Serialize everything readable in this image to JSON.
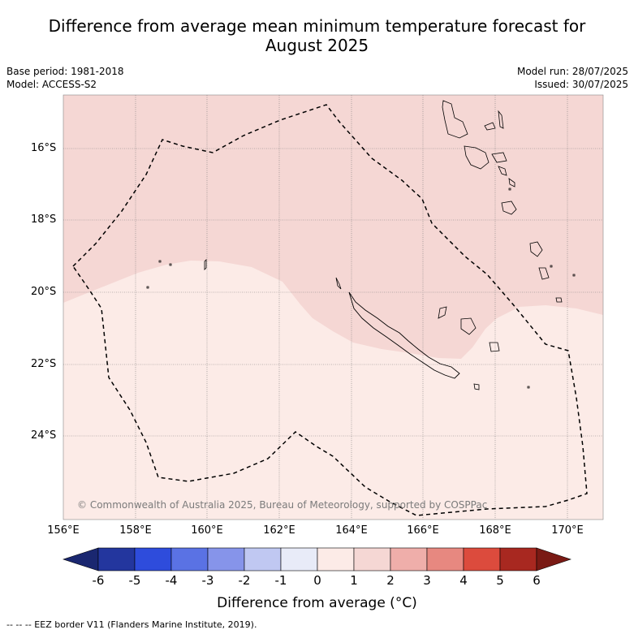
{
  "title_line1": "Difference from average mean minimum temperature forecast for",
  "title_line2": "August 2025",
  "base_period": "Base period: 1981-2018",
  "model": "Model: ACCESS-S2",
  "model_run": "Model run: 28/07/2025",
  "issued": "Issued: 30/07/2025",
  "latitudes": [
    "16°S",
    "18°S",
    "20°S",
    "22°S",
    "24°S"
  ],
  "longitudes": [
    "156°E",
    "158°E",
    "160°E",
    "162°E",
    "164°E",
    "166°E",
    "168°E",
    "170°E"
  ],
  "copyright": "© Commonwealth of Australia 2025, Bureau of Meteorology, supported by COSPPac",
  "colorbar": {
    "ticks": [
      "-6",
      "-5",
      "-4",
      "-3",
      "-2",
      "-1",
      "0",
      "1",
      "2",
      "3",
      "4",
      "5",
      "6"
    ],
    "colors": [
      "#23369e",
      "#2e4cdc",
      "#5a72e4",
      "#8694ea",
      "#c0c8f2",
      "#e8ebf8",
      "#fcebe7",
      "#f5d7d4",
      "#efaeaa",
      "#e78880",
      "#dc4b3d",
      "#a82820"
    ],
    "end_low": "#1a2770",
    "end_high": "#7a1a14",
    "title": "Difference from average (",
    "title_unit": "°C)"
  },
  "map_colors": {
    "band_1_2": "#f5d7d4",
    "band_0_1": "#fcebe7"
  },
  "footer": "--  --  -- EEZ border V11 (Flanders Marine Institute, 2019)."
}
